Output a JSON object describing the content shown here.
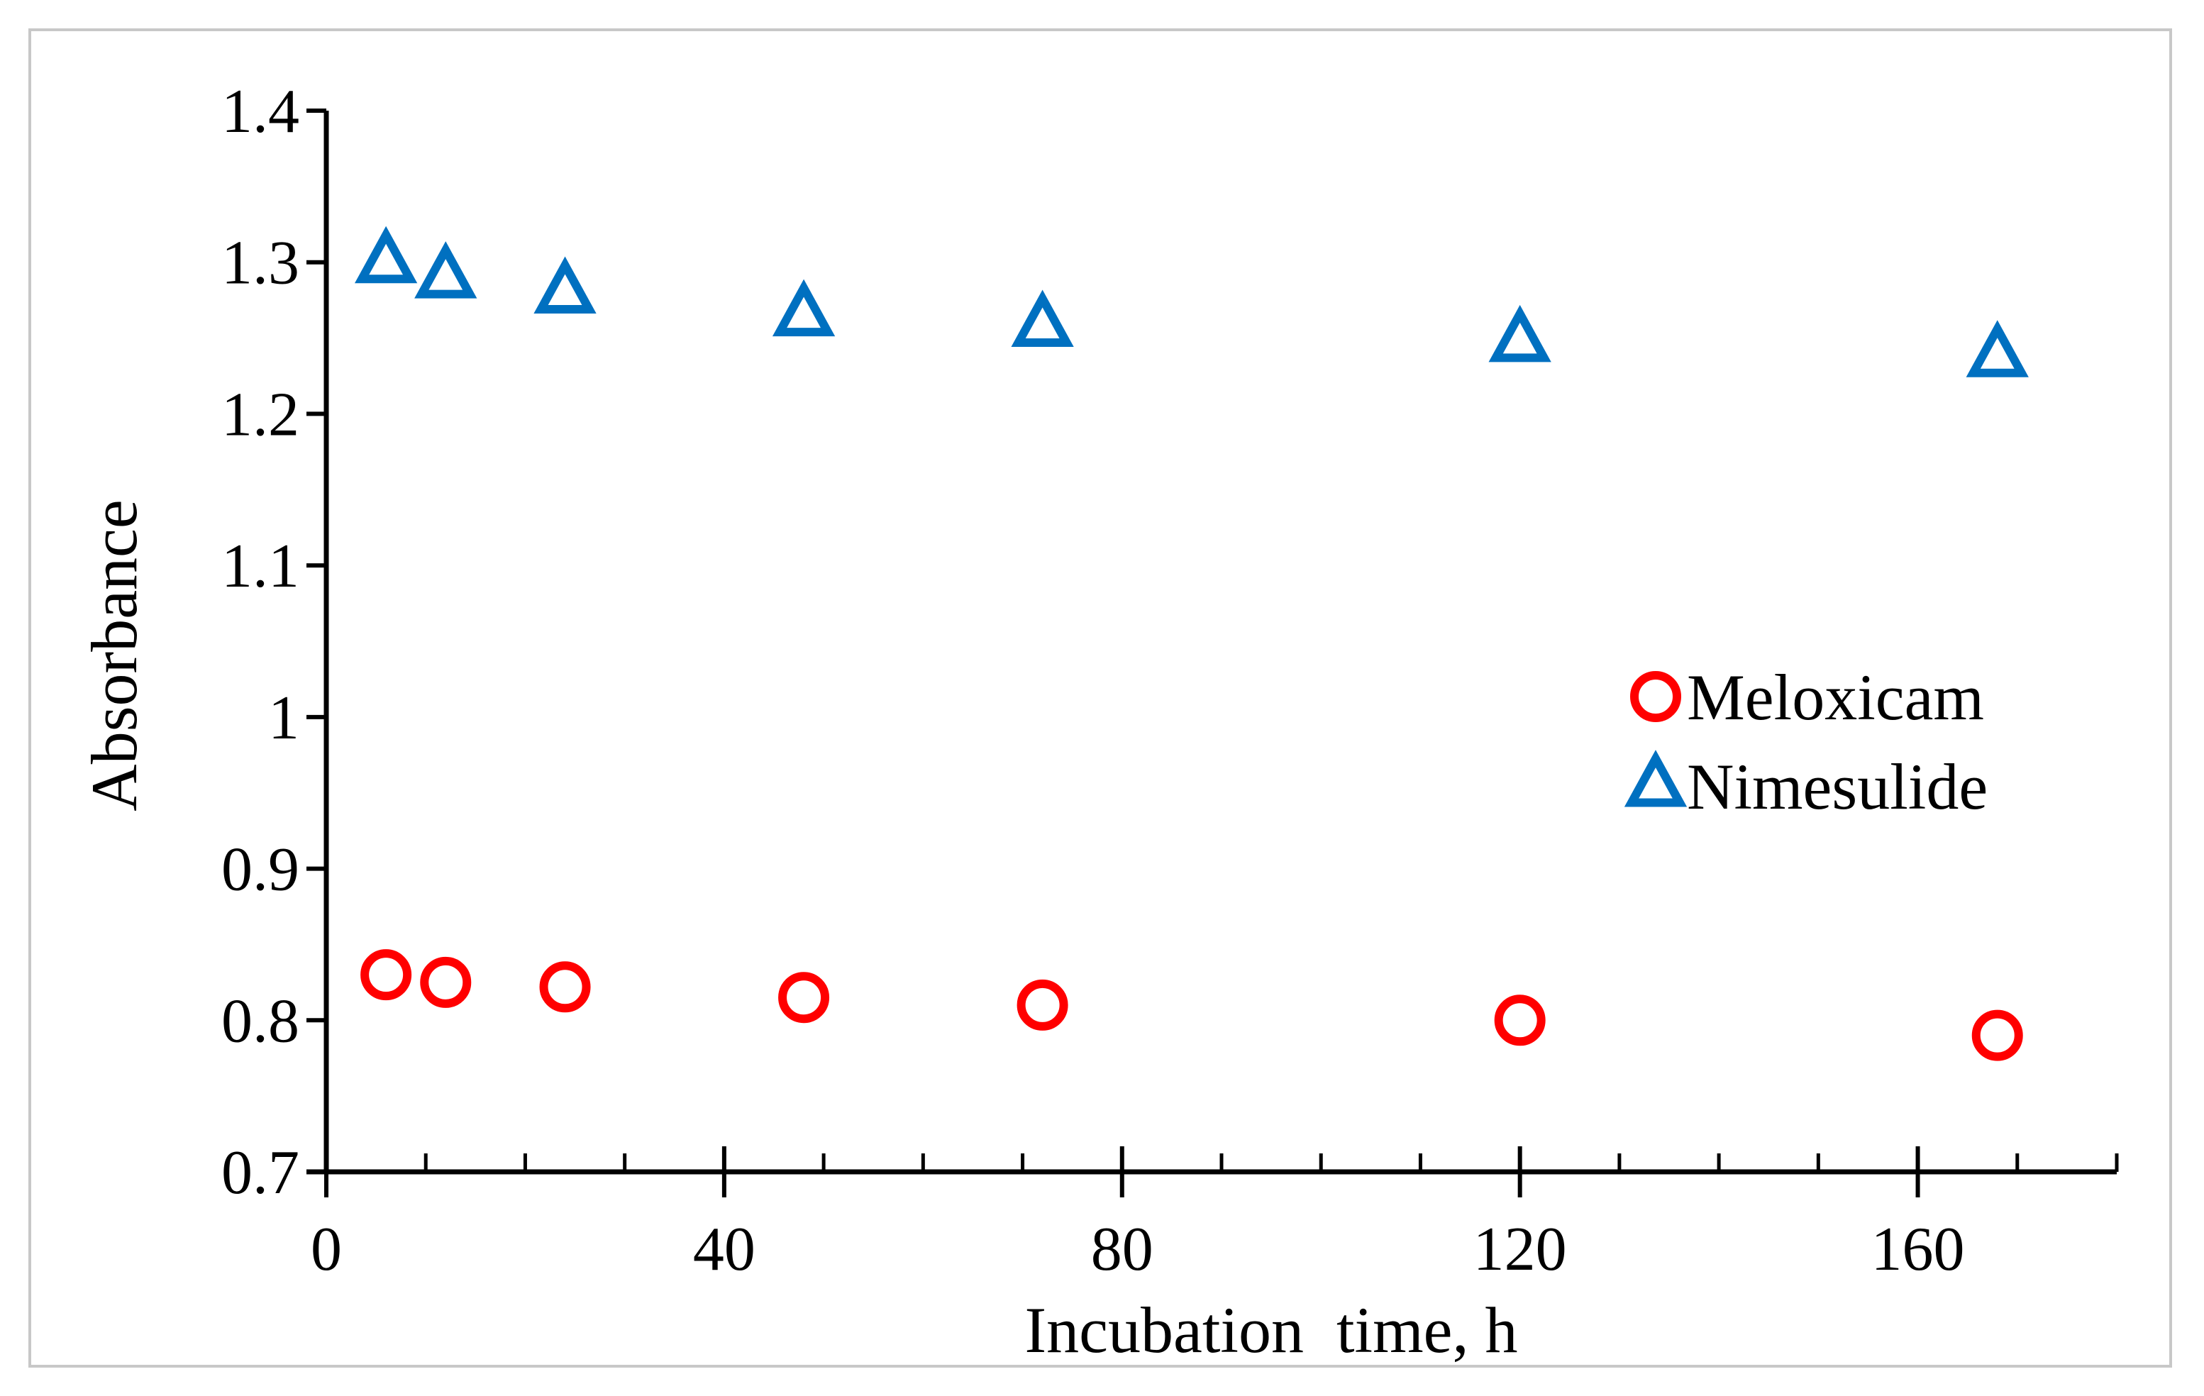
{
  "chart_data": {
    "type": "scatter",
    "title": "",
    "xlabel": "Incubation  time, h",
    "ylabel": "Absorbance",
    "xlim": [
      0,
      180
    ],
    "ylim": [
      0.7,
      1.4
    ],
    "x_major_ticks": [
      0,
      40,
      80,
      120,
      160
    ],
    "x_minor_step": 10,
    "x_tick_labels": [
      "0",
      "40",
      "80",
      "120",
      "160"
    ],
    "y_ticks": [
      0.7,
      0.8,
      0.9,
      1.0,
      1.1,
      1.2,
      1.3,
      1.4
    ],
    "y_tick_labels": [
      "0.7",
      "0.8",
      "0.9",
      "1",
      "1.1",
      "1.2",
      "1.3",
      "1.4"
    ],
    "grid": false,
    "legend_position": "right",
    "series": [
      {
        "name": "Meloxicam",
        "marker": "circle",
        "color": "#ff0000",
        "x": [
          6,
          12,
          24,
          48,
          72,
          120,
          168
        ],
        "y": [
          0.83,
          0.825,
          0.822,
          0.815,
          0.81,
          0.8,
          0.79
        ]
      },
      {
        "name": "Nimesulide",
        "marker": "triangle",
        "color": "#0070c0",
        "x": [
          6,
          12,
          24,
          48,
          72,
          120,
          168
        ],
        "y": [
          1.3,
          1.29,
          1.28,
          1.265,
          1.258,
          1.248,
          1.238
        ]
      }
    ]
  }
}
